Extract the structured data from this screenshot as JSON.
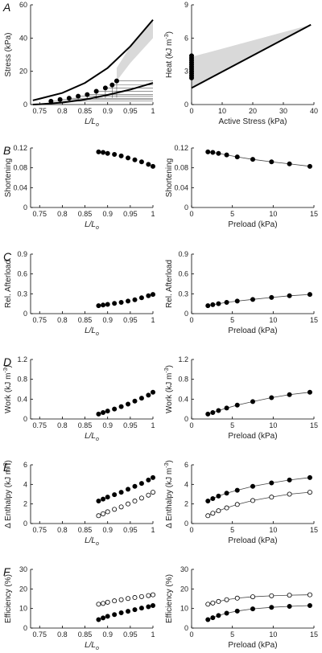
{
  "chart_data": [
    {
      "id": "A-left",
      "panel": "A",
      "type": "line",
      "xlabel_main": "L/L",
      "xlabel_sub": "o",
      "ylabel": "Stress (kPa)",
      "ylabel_sup": "",
      "xlim": [
        0.73,
        1.0
      ],
      "ylim": [
        0,
        60
      ],
      "xticks": [
        0.75,
        0.8,
        0.85,
        0.9,
        0.95,
        1
      ],
      "xtick_labels": [
        "0.75",
        "0.8",
        "0.85",
        "0.9",
        "0.95",
        "1"
      ],
      "yticks": [
        0,
        20,
        40,
        60
      ],
      "ytick_labels": [
        "0",
        "20",
        "40",
        "60"
      ],
      "series": [
        {
          "style": "thick-line",
          "x": [
            0.735,
            0.75,
            0.8,
            0.85,
            0.9,
            0.95,
            1.0
          ],
          "y": [
            2.5,
            3.5,
            7.0,
            13.0,
            22.0,
            35.0,
            51.0
          ]
        },
        {
          "style": "thick-line",
          "x": [
            0.735,
            0.75,
            0.8,
            0.85,
            0.9,
            0.95,
            1.0
          ],
          "y": [
            0.0,
            0.2,
            1.2,
            3.0,
            5.8,
            9.0,
            13.0
          ]
        },
        {
          "style": "dots-filled",
          "x": [
            0.775,
            0.795,
            0.815,
            0.835,
            0.855,
            0.875,
            0.895,
            0.91,
            0.92
          ],
          "y": [
            2,
            3,
            3.8,
            5,
            6,
            8,
            10,
            11.8,
            14.2
          ]
        }
      ],
      "shaded": {
        "x": [
          0.92,
          0.95,
          1.0
        ],
        "upper": [
          22,
          35,
          51
        ],
        "lower": [
          14.2,
          25,
          40
        ]
      }
    },
    {
      "id": "A-right",
      "panel": "",
      "type": "line",
      "xlabel_main": "Active Stress (kPa)",
      "xlabel_sub": "",
      "ylabel": "Heat (kJ m",
      "ylabel_sup": "-3",
      "xlim": [
        0,
        40
      ],
      "ylim": [
        0,
        9
      ],
      "xticks": [
        0,
        10,
        20,
        30,
        40
      ],
      "xtick_labels": [
        "0",
        "10",
        "20",
        "30",
        "40"
      ],
      "yticks": [
        0,
        3,
        6,
        9
      ],
      "ytick_labels": [
        "0",
        "3",
        "6",
        "9"
      ],
      "series": [
        {
          "style": "thick-line",
          "x": [
            0,
            39
          ],
          "y": [
            1.5,
            7.2
          ]
        },
        {
          "style": "dots-filled",
          "x": [
            0,
            0,
            0,
            0,
            0,
            0,
            0,
            0,
            0,
            0,
            0
          ],
          "y": [
            2.4,
            2.6,
            2.8,
            3.0,
            3.2,
            3.4,
            3.6,
            3.8,
            4.0,
            4.2,
            4.4
          ]
        }
      ],
      "shaded": {
        "x": [
          0,
          39
        ],
        "upper": [
          4.3,
          7.2
        ],
        "lower": [
          1.5,
          7.2
        ]
      }
    },
    {
      "id": "B-left",
      "panel": "B",
      "type": "scatter",
      "xlabel_main": "L/L",
      "xlabel_sub": "o",
      "ylabel": "Shortening",
      "ylabel_sup": "",
      "xlim": [
        0.73,
        1.0
      ],
      "ylim": [
        0,
        0.12
      ],
      "xticks": [
        0.75,
        0.8,
        0.85,
        0.9,
        0.95,
        1
      ],
      "xtick_labels": [
        "0.75",
        "0.8",
        "0.85",
        "0.9",
        "0.95",
        "1"
      ],
      "yticks": [
        0,
        0.04,
        0.08,
        0.12
      ],
      "ytick_labels": [
        "0",
        "0.04",
        "0.08",
        "0.12"
      ],
      "series": [
        {
          "style": "dots-filled",
          "x": [
            0.88,
            0.89,
            0.9,
            0.915,
            0.93,
            0.945,
            0.96,
            0.975,
            0.99,
            1.0
          ],
          "y": [
            0.112,
            0.111,
            0.109,
            0.107,
            0.104,
            0.1,
            0.096,
            0.092,
            0.087,
            0.083
          ]
        }
      ]
    },
    {
      "id": "B-right",
      "panel": "",
      "type": "line",
      "xlabel_main": "Preload (kPa)",
      "xlabel_sub": "",
      "ylabel": "Shortening",
      "ylabel_sup": "",
      "xlim": [
        0,
        15
      ],
      "ylim": [
        0,
        0.12
      ],
      "xticks": [
        0,
        5,
        10,
        15
      ],
      "xtick_labels": [
        "0",
        "5",
        "10",
        "15"
      ],
      "yticks": [
        0,
        0.04,
        0.08,
        0.12
      ],
      "ytick_labels": [
        "0",
        "0.04",
        "0.08",
        "0.12"
      ],
      "series": [
        {
          "style": "dots-filled-line",
          "x": [
            2.0,
            2.6,
            3.3,
            4.3,
            5.6,
            7.5,
            9.8,
            12.0,
            14.5
          ],
          "y": [
            0.112,
            0.111,
            0.109,
            0.106,
            0.102,
            0.097,
            0.092,
            0.088,
            0.083
          ]
        }
      ]
    },
    {
      "id": "C-left",
      "panel": "C",
      "type": "scatter",
      "xlabel_main": "L/L",
      "xlabel_sub": "o",
      "ylabel": "Rel. Afterload",
      "ylabel_sup": "",
      "xlim": [
        0.73,
        1.0
      ],
      "ylim": [
        0,
        0.9
      ],
      "xticks": [
        0.75,
        0.8,
        0.85,
        0.9,
        0.95,
        1
      ],
      "xtick_labels": [
        "0.75",
        "0.8",
        "0.85",
        "0.9",
        "0.95",
        "1"
      ],
      "yticks": [
        0,
        0.3,
        0.6,
        0.9
      ],
      "ytick_labels": [
        "0",
        "0.3",
        "0.6",
        "0.9"
      ],
      "series": [
        {
          "style": "dots-filled",
          "x": [
            0.88,
            0.89,
            0.9,
            0.915,
            0.93,
            0.945,
            0.96,
            0.975,
            0.99,
            1.0
          ],
          "y": [
            0.12,
            0.13,
            0.14,
            0.155,
            0.17,
            0.19,
            0.21,
            0.24,
            0.27,
            0.29
          ]
        }
      ]
    },
    {
      "id": "C-right",
      "panel": "",
      "type": "line",
      "xlabel_main": "Preload (kPa)",
      "xlabel_sub": "",
      "ylabel": "Rel. Afterload",
      "ylabel_sup": "",
      "xlim": [
        0,
        15
      ],
      "ylim": [
        0,
        0.9
      ],
      "xticks": [
        0,
        5,
        10,
        15
      ],
      "xtick_labels": [
        "0",
        "5",
        "10",
        "15"
      ],
      "yticks": [
        0,
        0.3,
        0.6,
        0.9
      ],
      "ytick_labels": [
        "0",
        "0.3",
        "0.6",
        "0.9"
      ],
      "series": [
        {
          "style": "dots-filled-line",
          "x": [
            2.0,
            2.6,
            3.3,
            4.3,
            5.6,
            7.5,
            9.8,
            12.0,
            14.5
          ],
          "y": [
            0.12,
            0.135,
            0.15,
            0.17,
            0.19,
            0.215,
            0.245,
            0.27,
            0.29
          ]
        }
      ]
    },
    {
      "id": "D-left",
      "panel": "D",
      "type": "scatter",
      "xlabel_main": "L/L",
      "xlabel_sub": "o",
      "ylabel": "Work (kJ m",
      "ylabel_sup": "-3",
      "xlim": [
        0.73,
        1.0
      ],
      "ylim": [
        0,
        1.2
      ],
      "xticks": [
        0.75,
        0.8,
        0.85,
        0.9,
        0.95,
        1
      ],
      "xtick_labels": [
        "0.75",
        "0.8",
        "0.85",
        "0.9",
        "0.95",
        "1"
      ],
      "yticks": [
        0,
        0.4,
        0.8,
        1.2
      ],
      "ytick_labels": [
        "0",
        "0.4",
        "0.8",
        "1.2"
      ],
      "series": [
        {
          "style": "dots-filled",
          "x": [
            0.88,
            0.89,
            0.9,
            0.915,
            0.93,
            0.945,
            0.96,
            0.975,
            0.99,
            1.0
          ],
          "y": [
            0.1,
            0.13,
            0.16,
            0.2,
            0.25,
            0.3,
            0.36,
            0.42,
            0.48,
            0.54
          ]
        }
      ]
    },
    {
      "id": "D-right",
      "panel": "",
      "type": "line",
      "xlabel_main": "Preload (kPa)",
      "xlabel_sub": "",
      "ylabel": "Work (kJ m",
      "ylabel_sup": "-3",
      "xlim": [
        0,
        15
      ],
      "ylim": [
        0,
        1.2
      ],
      "xticks": [
        0,
        5,
        10,
        15
      ],
      "xtick_labels": [
        "0",
        "5",
        "10",
        "15"
      ],
      "yticks": [
        0,
        0.4,
        0.8,
        1.2
      ],
      "ytick_labels": [
        "0",
        "0.4",
        "0.8",
        "1.2"
      ],
      "series": [
        {
          "style": "dots-filled-line",
          "x": [
            2.0,
            2.6,
            3.3,
            4.3,
            5.6,
            7.5,
            9.8,
            12.0,
            14.5
          ],
          "y": [
            0.1,
            0.13,
            0.17,
            0.22,
            0.28,
            0.35,
            0.43,
            0.49,
            0.54
          ]
        }
      ]
    },
    {
      "id": "E-left",
      "panel": "E",
      "type": "scatter",
      "xlabel_main": "L/L",
      "xlabel_sub": "o",
      "ylabel": "Δ Enthalpy (kJ m",
      "ylabel_sup": "-3",
      "xlim": [
        0.73,
        1.0
      ],
      "ylim": [
        0,
        6
      ],
      "xticks": [
        0.75,
        0.8,
        0.85,
        0.9,
        0.95,
        1
      ],
      "xtick_labels": [
        "0.75",
        "0.8",
        "0.85",
        "0.9",
        "0.95",
        "1"
      ],
      "yticks": [
        0,
        2,
        4,
        6
      ],
      "ytick_labels": [
        "0",
        "2",
        "4",
        "6"
      ],
      "series": [
        {
          "style": "dots-filled",
          "x": [
            0.88,
            0.89,
            0.9,
            0.915,
            0.93,
            0.945,
            0.96,
            0.975,
            0.99,
            1.0
          ],
          "y": [
            2.3,
            2.5,
            2.7,
            2.95,
            3.2,
            3.5,
            3.8,
            4.1,
            4.45,
            4.7
          ]
        },
        {
          "style": "dots-open",
          "x": [
            0.88,
            0.89,
            0.9,
            0.915,
            0.93,
            0.945,
            0.96,
            0.975,
            0.99,
            1.0
          ],
          "y": [
            0.8,
            1.0,
            1.2,
            1.45,
            1.7,
            2.0,
            2.3,
            2.6,
            2.9,
            3.2
          ]
        }
      ]
    },
    {
      "id": "E-right",
      "panel": "",
      "type": "line",
      "xlabel_main": "Preload (kPa)",
      "xlabel_sub": "",
      "ylabel": "Δ Enthalpy (kJ m",
      "ylabel_sup": "-3",
      "xlim": [
        0,
        15
      ],
      "ylim": [
        0,
        6
      ],
      "xticks": [
        0,
        5,
        10,
        15
      ],
      "xtick_labels": [
        "0",
        "5",
        "10",
        "15"
      ],
      "yticks": [
        0,
        2,
        4,
        6
      ],
      "ytick_labels": [
        "0",
        "2",
        "4",
        "6"
      ],
      "series": [
        {
          "style": "dots-filled-line",
          "x": [
            2.0,
            2.6,
            3.3,
            4.3,
            5.6,
            7.5,
            9.8,
            12.0,
            14.5
          ],
          "y": [
            2.3,
            2.55,
            2.8,
            3.1,
            3.4,
            3.8,
            4.15,
            4.45,
            4.7
          ]
        },
        {
          "style": "dots-open-line",
          "x": [
            2.0,
            2.6,
            3.3,
            4.3,
            5.6,
            7.5,
            9.8,
            12.0,
            14.5
          ],
          "y": [
            0.8,
            1.05,
            1.3,
            1.6,
            1.95,
            2.35,
            2.7,
            3.0,
            3.2
          ]
        }
      ]
    },
    {
      "id": "F-left",
      "panel": "F",
      "type": "scatter",
      "xlabel_main": "L/L",
      "xlabel_sub": "o",
      "ylabel": "Efficiency (%)",
      "ylabel_sup": "",
      "xlim": [
        0.73,
        1.0
      ],
      "ylim": [
        0,
        30
      ],
      "xticks": [
        0.75,
        0.8,
        0.85,
        0.9,
        0.95,
        1
      ],
      "xtick_labels": [
        "0.75",
        "0.8",
        "0.85",
        "0.9",
        "0.95",
        "1"
      ],
      "yticks": [
        0,
        10,
        20,
        30
      ],
      "ytick_labels": [
        "0",
        "10",
        "20",
        "30"
      ],
      "series": [
        {
          "style": "dots-open",
          "x": [
            0.88,
            0.89,
            0.9,
            0.915,
            0.93,
            0.945,
            0.96,
            0.975,
            0.99,
            1.0
          ],
          "y": [
            12.2,
            12.6,
            13.2,
            13.9,
            14.5,
            15.1,
            15.6,
            16.1,
            16.6,
            17.0
          ]
        },
        {
          "style": "dots-filled",
          "x": [
            0.88,
            0.89,
            0.9,
            0.915,
            0.93,
            0.945,
            0.96,
            0.975,
            0.99,
            1.0
          ],
          "y": [
            4.3,
            5.2,
            6.0,
            6.9,
            7.8,
            8.6,
            9.4,
            10.2,
            10.9,
            11.5
          ]
        }
      ]
    },
    {
      "id": "F-right",
      "panel": "",
      "type": "line",
      "xlabel_main": "Preload (kPa)",
      "xlabel_sub": "",
      "ylabel": "Efficiency (%)",
      "ylabel_sup": "",
      "xlim": [
        0,
        15
      ],
      "ylim": [
        0,
        30
      ],
      "xticks": [
        0,
        5,
        10,
        15
      ],
      "xtick_labels": [
        "0",
        "5",
        "10",
        "15"
      ],
      "yticks": [
        0,
        10,
        20,
        30
      ],
      "ytick_labels": [
        "0",
        "10",
        "20",
        "30"
      ],
      "series": [
        {
          "style": "dots-open-line",
          "x": [
            2.0,
            2.6,
            3.3,
            4.3,
            5.6,
            7.5,
            9.8,
            12.0,
            14.5
          ],
          "y": [
            12.2,
            12.8,
            13.6,
            14.5,
            15.3,
            16.0,
            16.5,
            16.8,
            17.0
          ]
        },
        {
          "style": "dots-filled-line",
          "x": [
            2.0,
            2.6,
            3.3,
            4.3,
            5.6,
            7.5,
            9.8,
            12.0,
            14.5
          ],
          "y": [
            4.3,
            5.3,
            6.4,
            7.6,
            8.7,
            9.8,
            10.6,
            11.1,
            11.5
          ]
        }
      ]
    }
  ]
}
